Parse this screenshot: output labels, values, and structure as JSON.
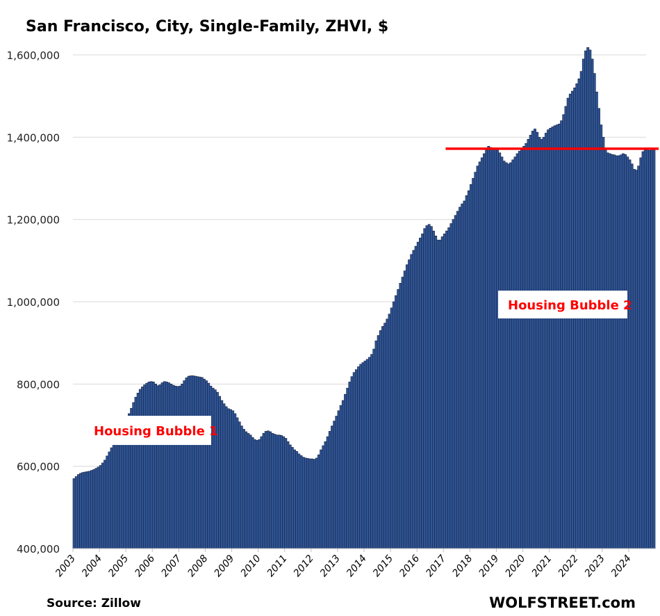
{
  "chart_data": {
    "type": "bar",
    "title": "San Francisco, City, Single-Family, ZHVI, $",
    "xlabel": "",
    "ylabel": "",
    "ylim": [
      400000,
      1600000
    ],
    "yticks": [
      400000,
      600000,
      800000,
      1000000,
      1200000,
      1400000,
      1600000
    ],
    "ytick_labels": [
      "400,000",
      "600,000",
      "800,000",
      "1,000,000",
      "1,200,000",
      "1,400,000",
      "1,600,000"
    ],
    "grid": true,
    "start": "2003-01",
    "frequency": "monthly",
    "xtick_labels": [
      "2003",
      "2004",
      "2005",
      "2006",
      "2007",
      "2008",
      "2009",
      "2010",
      "2011",
      "2012",
      "2013",
      "2014",
      "2015",
      "2016",
      "2017",
      "2018",
      "2019",
      "2020",
      "2021",
      "2022",
      "2023",
      "2024"
    ],
    "units_note": "values in thousands of dollars",
    "values": [
      570,
      575,
      580,
      583,
      585,
      586,
      587,
      588,
      590,
      592,
      595,
      598,
      602,
      608,
      615,
      625,
      635,
      645,
      655,
      665,
      675,
      685,
      695,
      705,
      715,
      728,
      741,
      755,
      768,
      778,
      787,
      793,
      798,
      802,
      805,
      806,
      805,
      800,
      796,
      798,
      803,
      806,
      805,
      803,
      800,
      797,
      795,
      794,
      795,
      800,
      808,
      815,
      819,
      820,
      820,
      819,
      818,
      817,
      816,
      812,
      808,
      802,
      795,
      790,
      786,
      780,
      770,
      760,
      752,
      745,
      740,
      738,
      735,
      728,
      718,
      708,
      698,
      690,
      684,
      680,
      676,
      670,
      665,
      663,
      665,
      672,
      680,
      685,
      686,
      684,
      680,
      678,
      676,
      676,
      675,
      672,
      668,
      660,
      652,
      646,
      640,
      636,
      630,
      626,
      622,
      620,
      619,
      618,
      618,
      617,
      620,
      628,
      640,
      650,
      660,
      672,
      685,
      698,
      710,
      722,
      735,
      748,
      760,
      775,
      790,
      805,
      818,
      828,
      835,
      842,
      848,
      852,
      856,
      860,
      865,
      872,
      885,
      905,
      918,
      930,
      940,
      948,
      958,
      970,
      985,
      1000,
      1015,
      1030,
      1045,
      1060,
      1075,
      1090,
      1102,
      1115,
      1125,
      1135,
      1145,
      1155,
      1165,
      1178,
      1185,
      1188,
      1183,
      1172,
      1160,
      1150,
      1150,
      1158,
      1165,
      1172,
      1180,
      1190,
      1200,
      1210,
      1220,
      1230,
      1238,
      1245,
      1258,
      1270,
      1285,
      1300,
      1315,
      1330,
      1340,
      1350,
      1360,
      1372,
      1378,
      1375,
      1374,
      1373,
      1370,
      1362,
      1352,
      1342,
      1338,
      1335,
      1338,
      1345,
      1352,
      1360,
      1366,
      1372,
      1378,
      1385,
      1395,
      1405,
      1415,
      1420,
      1412,
      1400,
      1395,
      1400,
      1410,
      1418,
      1422,
      1425,
      1428,
      1430,
      1432,
      1440,
      1455,
      1475,
      1495,
      1505,
      1512,
      1520,
      1530,
      1542,
      1560,
      1590,
      1610,
      1618,
      1612,
      1590,
      1555,
      1510,
      1470,
      1430,
      1400,
      1370,
      1362,
      1360,
      1358,
      1357,
      1355,
      1355,
      1357,
      1360,
      1358,
      1352,
      1345,
      1335,
      1322,
      1320,
      1330,
      1350,
      1365,
      1372,
      1372,
      1368,
      1370,
      1372
    ],
    "reference_line": {
      "value": 1372000,
      "from": "2017-02",
      "color": "#ff0000"
    },
    "annotations": [
      {
        "text": "Housing Bubble 1",
        "color": "#ff0000"
      },
      {
        "text": "Housing Bubble 2",
        "color": "#ff0000"
      }
    ],
    "bar_color": "#2f5597",
    "bar_edge_color": "#1c2a48",
    "source": "Source: Zillow",
    "brand": "WOLFSTREET.com"
  }
}
